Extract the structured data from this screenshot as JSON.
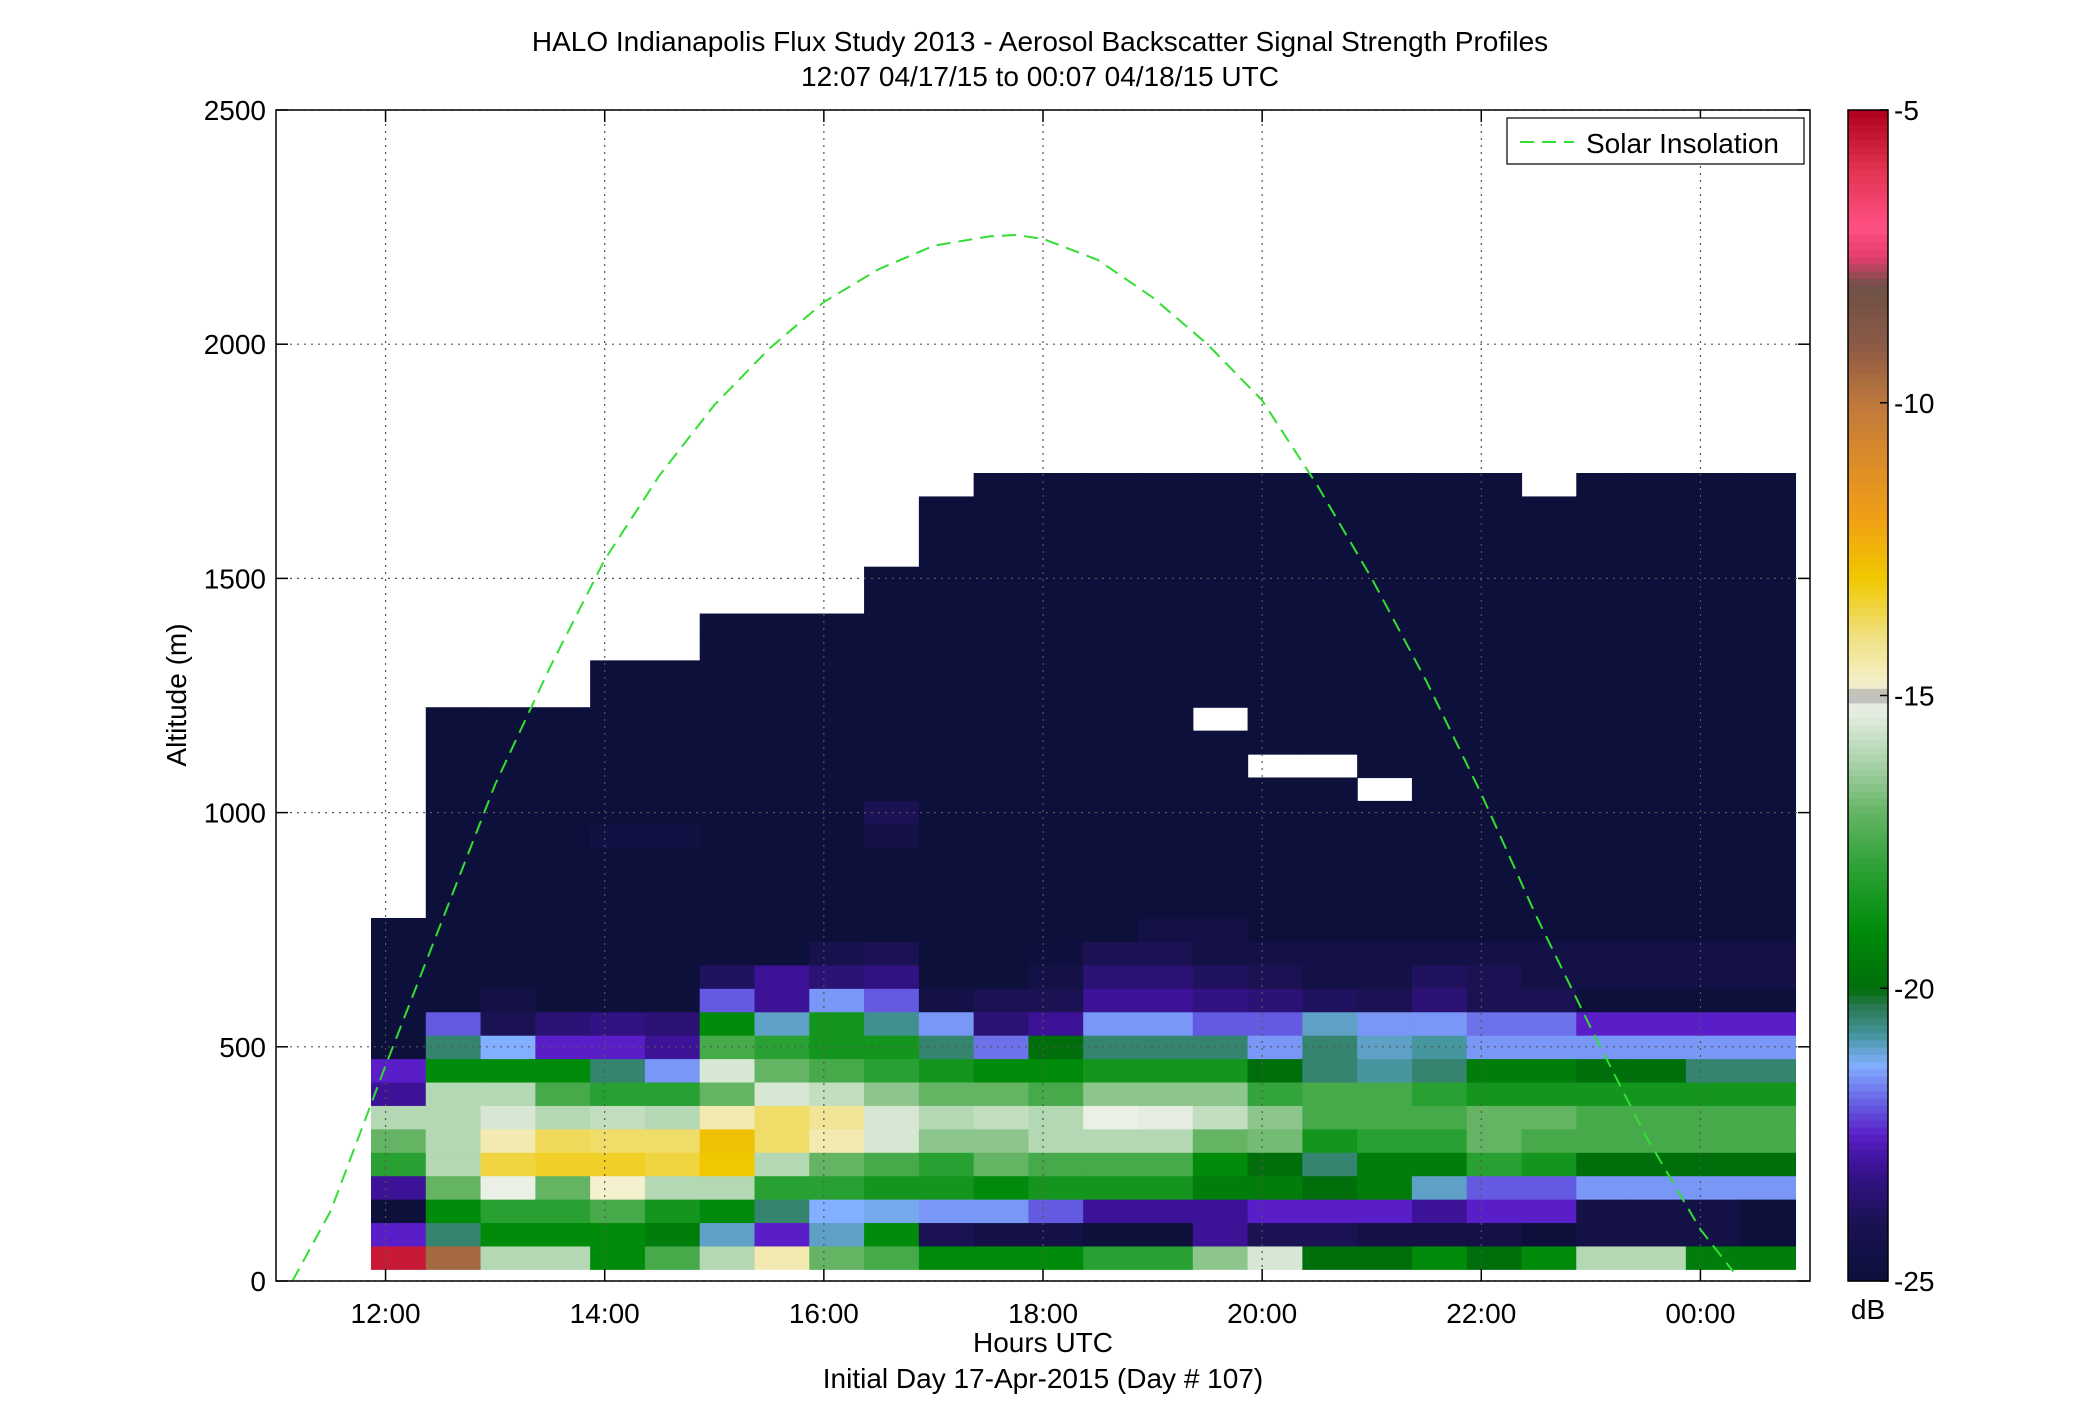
{
  "chart_data": {
    "type": "heatmap",
    "title": "HALO Indianapolis Flux Study 2013 - Aerosol Backscatter Signal Strength Profiles",
    "subtitle": "12:07 04/17/15 to 00:07 04/18/15  UTC",
    "xlabel": "Hours UTC",
    "xlabel2": "Initial Day 17-Apr-2015 (Day # 107)",
    "ylabel": "Altitude (m)",
    "xlim": [
      11.0,
      25.0
    ],
    "ylim": [
      0,
      2500
    ],
    "x_ticks": [
      12,
      14,
      16,
      18,
      20,
      22,
      24
    ],
    "x_tick_labels": [
      "12:00",
      "14:00",
      "16:00",
      "18:00",
      "20:00",
      "22:00",
      "00:00"
    ],
    "y_ticks": [
      0,
      500,
      1000,
      1500,
      2000,
      2500
    ],
    "y_tick_labels": [
      "0",
      "500",
      "1000",
      "1500",
      "2000",
      "2500"
    ],
    "grid": true,
    "legend": {
      "position": "top-right",
      "entries": [
        "Solar Insolation"
      ]
    },
    "colorbar": {
      "label": "dB",
      "min": -25,
      "max": -5,
      "ticks": [
        -5,
        -10,
        -15,
        -20,
        -25
      ],
      "tick_labels": [
        "-5",
        "-10",
        "-15",
        "-20",
        "-25"
      ]
    },
    "heatmap": {
      "time_start": 12.117,
      "time_step": 0.5,
      "alt_start": 50,
      "alt_step": 50,
      "columns": [
        [
          -5.5,
          -22.5,
          -25,
          -23,
          -18,
          -17,
          -16,
          -23,
          -22.5,
          -25,
          -25,
          -25,
          -25,
          -25,
          -25
        ],
        [
          -9.5,
          -20.5,
          -19,
          -17,
          -16,
          -16,
          -16,
          -16,
          -19,
          -20.5,
          -22,
          -25,
          -25,
          -25,
          -25,
          -25,
          -25,
          -25,
          -25,
          -25,
          -25,
          -25,
          -25,
          -25
        ],
        [
          -16,
          -19,
          -18,
          -15.2,
          -13.5,
          -14.5,
          -15.5,
          -16,
          -19,
          -21.3,
          -24,
          -24.5,
          -25,
          -25,
          -25,
          -25,
          -25,
          -25,
          -25,
          -25,
          -25,
          -25,
          -25,
          -25
        ],
        [
          -16,
          -19,
          -18,
          -17,
          -13.3,
          -13.7,
          -16,
          -17.5,
          -19,
          -22.5,
          -23.5,
          -25,
          -25,
          -25,
          -25,
          -25,
          -25,
          -25,
          -25,
          -25,
          -25,
          -25,
          -25,
          -25
        ],
        [
          -19,
          -19,
          -17.5,
          -14.8,
          -13.3,
          -13.8,
          -15.8,
          -18,
          -20.5,
          -22.5,
          -23.3,
          -25,
          -25,
          -25,
          -25,
          -25,
          -25,
          -25,
          -24.6,
          -25,
          -25,
          -25,
          -25,
          -25,
          -25,
          -25
        ],
        [
          -17.5,
          -19.5,
          -18.5,
          -16,
          -13.5,
          -13.8,
          -16,
          -18,
          -21.5,
          -23,
          -23.5,
          -25,
          -25,
          -25,
          -25,
          -25,
          -25,
          -25,
          -24.6,
          -25,
          -25,
          -25,
          -25,
          -25,
          -25,
          -25
        ],
        [
          -16,
          -21,
          -19,
          -16,
          -13,
          -12.8,
          -14.5,
          -17,
          -15.5,
          -17.5,
          -19,
          -22,
          -23.8,
          -25,
          -25,
          -25,
          -25,
          -25,
          -25,
          -25,
          -25,
          -25,
          -25,
          -25,
          -25,
          -25,
          -25,
          -25
        ],
        [
          -14.5,
          -22.5,
          -20.5,
          -18,
          -16,
          -13.8,
          -13.8,
          -15.5,
          -17,
          -18,
          -21,
          -23,
          -23,
          -25,
          -25,
          -25,
          -25,
          -25,
          -25,
          -25,
          -25,
          -25,
          -25,
          -25,
          -25,
          -25,
          -25,
          -25
        ],
        [
          -17,
          -21,
          -21.3,
          -18,
          -17,
          -14.5,
          -14.2,
          -15.8,
          -17.5,
          -18.5,
          -18.5,
          -21.5,
          -23.5,
          -24.2,
          -25,
          -25,
          -25,
          -25,
          -25,
          -25,
          -25,
          -25,
          -25,
          -25,
          -25,
          -25,
          -25,
          -25
        ],
        [
          -17.5,
          -19,
          -21.2,
          -18.5,
          -17.5,
          -15.5,
          -15.5,
          -16.5,
          -18,
          -18.5,
          -20.7,
          -22,
          -23.3,
          -24,
          -25,
          -25,
          -25,
          -25,
          -24.5,
          -24,
          -25,
          -25,
          -25,
          -25,
          -25,
          -25,
          -25,
          -25,
          -25,
          -25
        ],
        [
          -19,
          -24,
          -21.5,
          -18.5,
          -18,
          -16.5,
          -16,
          -17,
          -18.5,
          -20.5,
          -21.5,
          -24.5,
          -25,
          -25,
          -25,
          -25,
          -25,
          -25,
          -25,
          -25,
          -25,
          -25,
          -25,
          -25,
          -25,
          -25,
          -25,
          -25,
          -25,
          -25,
          -25,
          -25,
          -25
        ],
        [
          -19,
          -24.5,
          -21.5,
          -19,
          -17,
          -16.5,
          -15.8,
          -17,
          -19,
          -21.8,
          -23.5,
          -24,
          -25,
          -25,
          -25,
          -25,
          -25,
          -25,
          -25,
          -25,
          -25,
          -25,
          -25,
          -25,
          -25,
          -25,
          -25,
          -25,
          -25,
          -25,
          -25,
          -25,
          -25,
          -25
        ],
        [
          -19,
          -24.5,
          -22,
          -18.5,
          -17.5,
          -16,
          -16,
          -17.5,
          -19,
          -20,
          -23,
          -24,
          -24.5,
          -24.8,
          -25,
          -25,
          -25,
          -25,
          -25,
          -25,
          -25,
          -25,
          -25,
          -25,
          -25,
          -25,
          -25,
          -25,
          -25,
          -25,
          -25,
          -25,
          -25,
          -25
        ],
        [
          -18,
          -25,
          -23,
          -18.5,
          -17.5,
          -16,
          -15.2,
          -16.5,
          -18.5,
          -20.5,
          -21.5,
          -23,
          -23.5,
          -24,
          -25,
          -25,
          -25,
          -25,
          -25,
          -25,
          -25,
          -25,
          -25,
          -25,
          -25,
          -25,
          -25,
          -25,
          -25,
          -25,
          -25,
          -25,
          -25,
          -25
        ],
        [
          -18,
          -25,
          -23,
          -18.5,
          -17.5,
          -16,
          -15.3,
          -16.5,
          -18.5,
          -20.5,
          -21.5,
          -23,
          -23.5,
          -24,
          -24.5,
          -25,
          -25,
          -25,
          -25,
          -25,
          -25,
          -25,
          -25,
          -25,
          -25,
          -25,
          -25,
          -25,
          -25,
          -25,
          -25,
          -25,
          -25,
          -25
        ],
        [
          -16.5,
          -23,
          -23,
          -19.5,
          -19,
          -17,
          -15.8,
          -16.5,
          -18.5,
          -20.5,
          -22,
          -23.3,
          -23.8,
          -24.5,
          -24.5,
          -25,
          -25,
          -25,
          -25,
          -25,
          -25,
          -25,
          -25,
          null,
          -25,
          -25,
          -25,
          -25,
          -25,
          -25,
          -25,
          -25,
          -25,
          -25
        ],
        [
          -15.5,
          -24,
          -22.5,
          -19.5,
          -20,
          -16.8,
          -16.5,
          -17.8,
          -20,
          -21.5,
          -22,
          -23.5,
          -24,
          -24.5,
          -25,
          -25,
          -25,
          -25,
          -25,
          -25,
          -25,
          null,
          -25,
          -25,
          -25,
          -25,
          -25,
          -25,
          -25,
          -25,
          -25,
          -25,
          -25,
          -25
        ],
        [
          -20,
          -24,
          -22.5,
          -20,
          -20.5,
          -18.5,
          -17.5,
          -17.5,
          -20.5,
          -20.5,
          -21,
          -23.8,
          -24.5,
          -24.5,
          -25,
          -25,
          -25,
          -25,
          -25,
          -25,
          -25,
          null,
          -25,
          -25,
          -25,
          -25,
          -25,
          -25,
          -25,
          -25,
          -25,
          -25,
          -25,
          -25
        ],
        [
          -20,
          -24.5,
          -22.5,
          -19.5,
          -19.5,
          -18,
          -17.5,
          -17.5,
          -20.8,
          -21,
          -21.5,
          -24,
          -24.5,
          -24.5,
          -25,
          -25,
          -25,
          -25,
          -25,
          -25,
          null,
          -25,
          -25,
          -25,
          -25,
          -25,
          -25,
          -25,
          -25,
          -25,
          -25,
          -25,
          -25,
          -25
        ],
        [
          -19,
          -24.5,
          -23,
          -21,
          -19.5,
          -18,
          -17.5,
          -18,
          -20.5,
          -20.8,
          -21.5,
          -23.5,
          -23.8,
          -24.5,
          -25,
          -25,
          -25,
          -25,
          -25,
          -25,
          -25,
          -25,
          -25,
          -25,
          -25,
          -25,
          -25,
          -25,
          -25,
          -25,
          -25,
          -25,
          -25,
          -25
        ],
        [
          -20,
          -24.5,
          -22.5,
          -22,
          -18,
          -17,
          -17,
          -18.5,
          -19.5,
          -21.5,
          -21.8,
          -24,
          -24,
          -24.5,
          -25,
          -25,
          -25,
          -25,
          -25,
          -25,
          -25,
          -25,
          -25,
          -25,
          -25,
          -25,
          -25,
          -25,
          -25,
          -25,
          -25,
          -25,
          -25,
          -25
        ],
        [
          -19,
          -25,
          -22.5,
          -22,
          -18.5,
          -17.5,
          -17,
          -18.5,
          -19.5,
          -21.5,
          -21.8,
          -24,
          -24.5,
          -24.5,
          -25,
          -25,
          -25,
          -25,
          -25,
          -25,
          -25,
          -25,
          -25,
          -25,
          -25,
          -25,
          -25,
          -25,
          -25,
          -25,
          -25,
          -25,
          -25
        ],
        [
          -16,
          -24.5,
          -24.5,
          -21.5,
          -20,
          -17.5,
          -17.5,
          -18.5,
          -20,
          -21.5,
          -22.5,
          -25,
          -24.5,
          -24.5,
          -25,
          -25,
          -25,
          -25,
          -25,
          -25,
          -25,
          -25,
          -25,
          -25,
          -25,
          -25,
          -25,
          -25,
          -25,
          -25,
          -25,
          -25,
          -25,
          -25
        ],
        [
          -16,
          -24.5,
          -24.5,
          -21.5,
          -20,
          -17.5,
          -17.5,
          -18.5,
          -20,
          -21.5,
          -22.5,
          -25,
          -24.5,
          -24.5,
          -25,
          -25,
          -25,
          -25,
          -25,
          -25,
          -25,
          -25,
          -25,
          -25,
          -25,
          -25,
          -25,
          -25,
          -25,
          -25,
          -25,
          -25,
          -25,
          -25
        ],
        [
          -19.5,
          -24.5,
          -24.5,
          -21.5,
          -20,
          -17.5,
          -17.5,
          -18.5,
          -20.5,
          -21.5,
          -22.5,
          -25,
          -24.5,
          -24.5,
          -25,
          -25,
          -25,
          -25,
          -25,
          -25,
          -25,
          -25,
          -25,
          -25,
          -25,
          -25,
          -25,
          -25,
          -25,
          -25,
          -25,
          -25,
          -25,
          -25
        ],
        [
          -19.5,
          -25,
          -25,
          -21.5,
          -20,
          -17.5,
          -17.5,
          -18.5,
          -20.5,
          -21.5,
          -22.5,
          -25,
          -24.5,
          -24.5,
          -25,
          -25,
          -25,
          -25,
          -25,
          -25,
          -25,
          -25,
          -25,
          -25,
          -25,
          -25,
          -25,
          -25,
          -25,
          -25,
          -25,
          -25,
          -25,
          -25
        ]
      ]
    },
    "series": [
      {
        "name": "Solar Insolation",
        "style": "dashed",
        "color": "#33dd33",
        "x": [
          11.15,
          11.5,
          12.0,
          12.5,
          13.0,
          13.5,
          14.0,
          14.5,
          15.0,
          15.5,
          16.0,
          16.5,
          17.0,
          17.5,
          17.75,
          18.0,
          18.5,
          19.0,
          19.5,
          20.0,
          20.5,
          21.0,
          21.5,
          22.0,
          22.5,
          23.0,
          23.5,
          24.0,
          24.3
        ],
        "y": [
          0,
          150,
          460,
          760,
          1060,
          1310,
          1540,
          1720,
          1870,
          1990,
          2090,
          2160,
          2210,
          2230,
          2233,
          2225,
          2180,
          2100,
          2000,
          1880,
          1700,
          1500,
          1280,
          1040,
          780,
          540,
          310,
          110,
          20
        ]
      }
    ]
  },
  "colors": {
    "background": "#ffffff",
    "axes": "#000000",
    "grid": "#555555",
    "missing": "#ffffff"
  }
}
